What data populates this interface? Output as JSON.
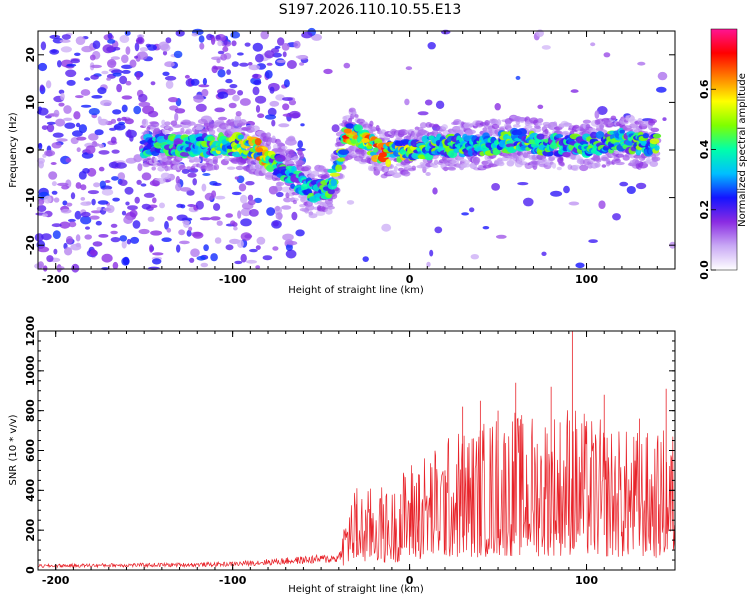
{
  "figure_title": "S197.2026.110.10.55.E13",
  "colors": {
    "snr_line": "#e8232a",
    "axis": "#000000",
    "background": "#ffffff"
  },
  "chart_data": [
    {
      "type": "heatmap",
      "title": "S197.2026.110.10.55.E13",
      "xlabel": "Height of straight line (km)",
      "ylabel": "Frequency (Hz)",
      "xlim": [
        -210,
        150
      ],
      "ylim": [
        -25,
        25
      ],
      "xticks": [
        -200,
        -100,
        0,
        100
      ],
      "yticks": [
        -20,
        -10,
        0,
        10,
        20
      ],
      "colorbar": {
        "label": "Normalized spectral amplitude",
        "range": [
          0.0,
          0.8
        ],
        "ticks": [
          0.0,
          0.2,
          0.4,
          0.6
        ],
        "colormap": [
          "#ffffff",
          "#c9a9f5",
          "#8a2be2",
          "#1414ff",
          "#00bfff",
          "#00ffaa",
          "#7fff00",
          "#ffff00",
          "#ff8000",
          "#ff0000",
          "#ff1493"
        ]
      },
      "ridge": [
        {
          "x": -150,
          "freq": 1,
          "amp": 0.35
        },
        {
          "x": -130,
          "freq": 1,
          "amp": 0.4
        },
        {
          "x": -110,
          "freq": 1,
          "amp": 0.45
        },
        {
          "x": -95,
          "freq": 1,
          "amp": 0.5
        },
        {
          "x": -85,
          "freq": 0,
          "amp": 0.6
        },
        {
          "x": -75,
          "freq": -3,
          "amp": 0.4
        },
        {
          "x": -65,
          "freq": -6,
          "amp": 0.35
        },
        {
          "x": -55,
          "freq": -9,
          "amp": 0.4
        },
        {
          "x": -45,
          "freq": -8,
          "amp": 0.4
        },
        {
          "x": -35,
          "freq": 4,
          "amp": 0.6
        },
        {
          "x": -25,
          "freq": 2,
          "amp": 0.55
        },
        {
          "x": -15,
          "freq": -1,
          "amp": 0.65
        },
        {
          "x": 0,
          "freq": 0,
          "amp": 0.5
        },
        {
          "x": 20,
          "freq": 1,
          "amp": 0.45
        },
        {
          "x": 40,
          "freq": 1,
          "amp": 0.4
        },
        {
          "x": 60,
          "freq": 2,
          "amp": 0.45
        },
        {
          "x": 80,
          "freq": 1,
          "amp": 0.4
        },
        {
          "x": 100,
          "freq": 1,
          "amp": 0.4
        },
        {
          "x": 120,
          "freq": 2,
          "amp": 0.4
        },
        {
          "x": 140,
          "freq": 1,
          "amp": 0.45
        }
      ]
    },
    {
      "type": "line",
      "xlabel": "Height of straight line (km)",
      "ylabel": "SNR (10 * v/v)",
      "xlim": [
        -210,
        150
      ],
      "ylim": [
        0,
        1200
      ],
      "xticks": [
        -200,
        -100,
        0,
        100
      ],
      "yticks": [
        0,
        200,
        400,
        600,
        800,
        1000,
        1200
      ],
      "series": [
        {
          "name": "SNR",
          "x": [
            -210,
            -190,
            -170,
            -150,
            -130,
            -110,
            -100,
            -90,
            -80,
            -70,
            -60,
            -50,
            -40,
            -35,
            -30,
            -25,
            -20,
            -15,
            -10,
            -5,
            0,
            5,
            10,
            15,
            20,
            25,
            30,
            35,
            40,
            45,
            50,
            55,
            60,
            65,
            70,
            75,
            80,
            85,
            90,
            95,
            100,
            105,
            110,
            115,
            120,
            125,
            130,
            135,
            140,
            145,
            150
          ],
          "values": [
            20,
            22,
            24,
            25,
            26,
            28,
            30,
            35,
            40,
            45,
            50,
            55,
            60,
            200,
            250,
            220,
            260,
            240,
            230,
            280,
            320,
            330,
            350,
            360,
            380,
            400,
            420,
            410,
            430,
            440,
            460,
            450,
            470,
            440,
            460,
            450,
            480,
            460,
            500,
            470,
            450,
            440,
            430,
            420,
            410,
            400,
            410,
            400,
            390,
            420,
            400
          ],
          "peaks": [
            {
              "x": -30,
              "value": 330
            },
            {
              "x": -5,
              "value": 380
            },
            {
              "x": 5,
              "value": 480
            },
            {
              "x": 20,
              "value": 500
            },
            {
              "x": 30,
              "value": 820
            },
            {
              "x": 40,
              "value": 850
            },
            {
              "x": 50,
              "value": 800
            },
            {
              "x": 60,
              "value": 940
            },
            {
              "x": 80,
              "value": 920
            },
            {
              "x": 92,
              "value": 1200
            },
            {
              "x": 110,
              "value": 880
            },
            {
              "x": 130,
              "value": 760
            },
            {
              "x": 145,
              "value": 910
            }
          ]
        }
      ]
    }
  ]
}
